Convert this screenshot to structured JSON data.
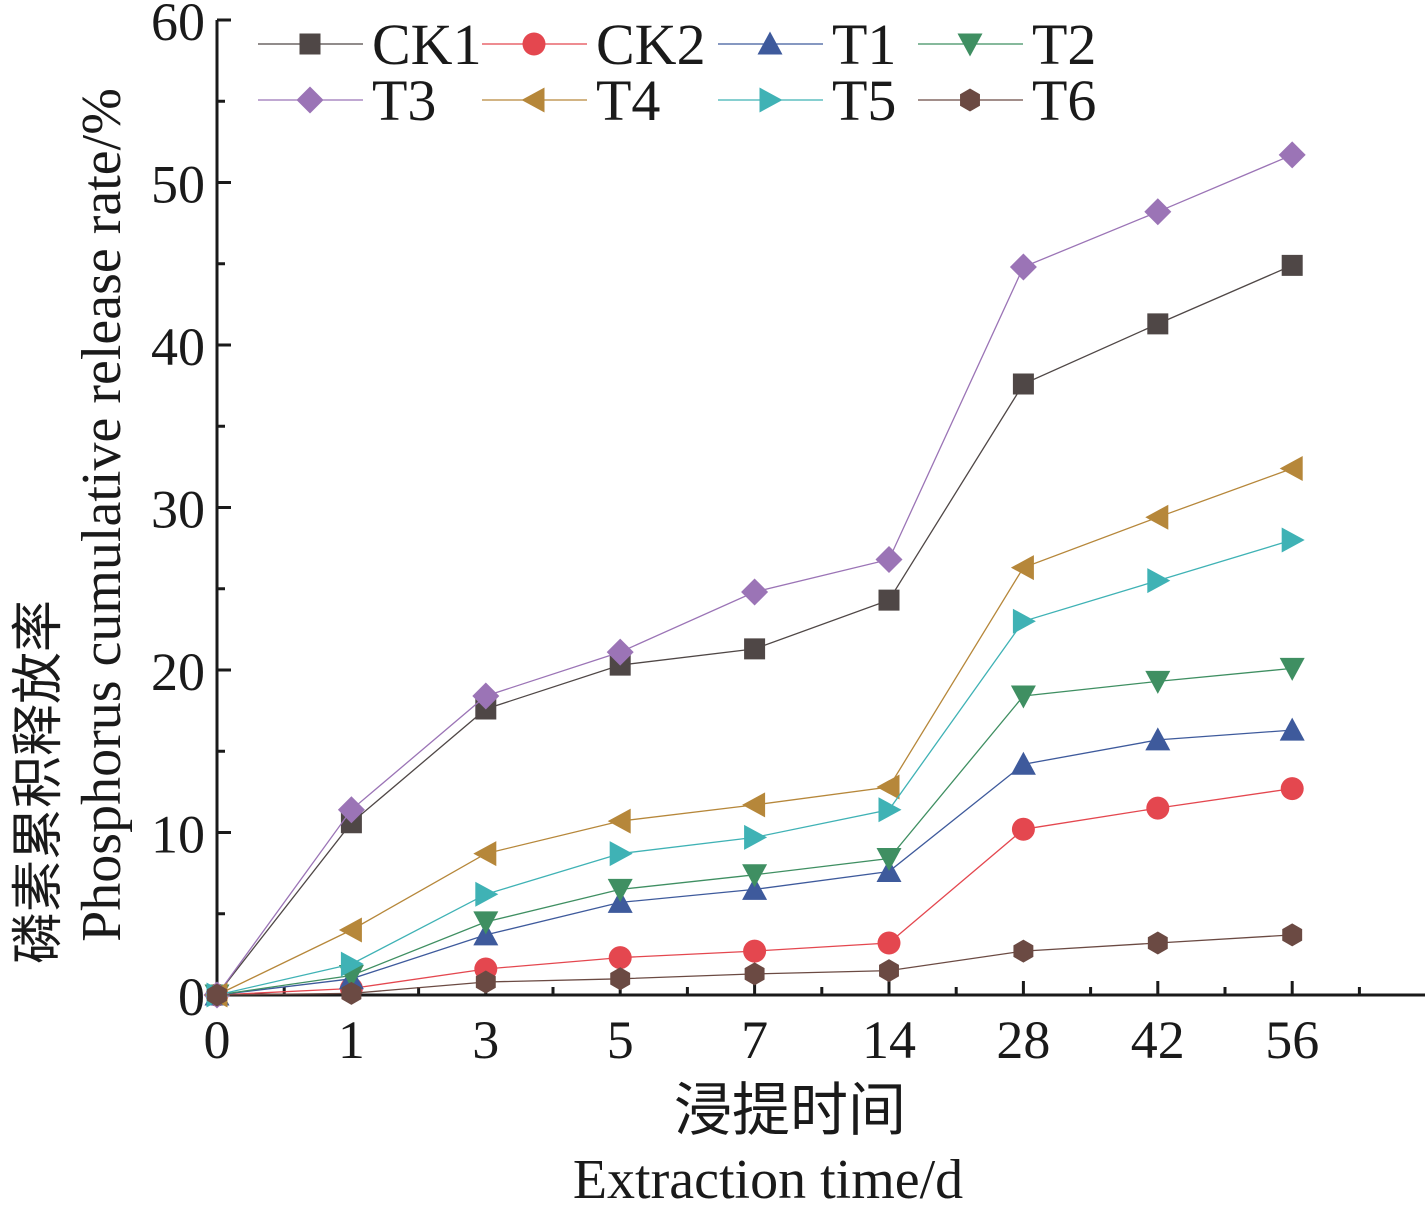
{
  "chart_data": {
    "type": "line",
    "title": "",
    "xlabel_cn": "浸提时间",
    "xlabel_en": "Extraction time/d",
    "ylabel_cn": "磷素累积释放率",
    "ylabel_en": "Phosphorus cumulative release rate/%",
    "categories": [
      "0",
      "1",
      "3",
      "5",
      "7",
      "14",
      "28",
      "42",
      "56"
    ],
    "ylim": [
      0,
      60
    ],
    "yticks": [
      "0",
      "10",
      "20",
      "30",
      "40",
      "50",
      "60"
    ],
    "legend_position": "top",
    "series": [
      {
        "name": "CK1",
        "marker": "square",
        "color": "#4f4746",
        "values": [
          0,
          10.6,
          17.6,
          20.3,
          21.3,
          24.3,
          37.6,
          41.3,
          44.9
        ]
      },
      {
        "name": "CK2",
        "marker": "circle",
        "color": "#e4474f",
        "values": [
          0,
          0.4,
          1.6,
          2.3,
          2.7,
          3.2,
          10.2,
          11.5,
          12.7
        ]
      },
      {
        "name": "T1",
        "marker": "triangle-up",
        "color": "#3e5a9c",
        "values": [
          0,
          1.0,
          3.7,
          5.7,
          6.5,
          7.6,
          14.2,
          15.7,
          16.3
        ]
      },
      {
        "name": "T2",
        "marker": "triangle-down",
        "color": "#3f8f62",
        "values": [
          0,
          1.2,
          4.5,
          6.5,
          7.4,
          8.4,
          18.4,
          19.3,
          20.1
        ]
      },
      {
        "name": "T3",
        "marker": "diamond",
        "color": "#9b74b6",
        "values": [
          0,
          11.4,
          18.4,
          21.1,
          24.8,
          26.8,
          44.8,
          48.2,
          51.7
        ]
      },
      {
        "name": "T4",
        "marker": "triangle-left",
        "color": "#b6873a",
        "values": [
          0,
          4.0,
          8.7,
          10.7,
          11.7,
          12.8,
          26.3,
          29.4,
          32.4
        ]
      },
      {
        "name": "T5",
        "marker": "triangle-right",
        "color": "#3fb2b5",
        "values": [
          0,
          1.9,
          6.2,
          8.7,
          9.7,
          11.4,
          23.0,
          25.5,
          28.0
        ]
      },
      {
        "name": "T6",
        "marker": "hexagon",
        "color": "#6b4a43",
        "values": [
          0,
          0.1,
          0.8,
          1.0,
          1.3,
          1.5,
          2.7,
          3.2,
          3.7
        ]
      }
    ]
  }
}
